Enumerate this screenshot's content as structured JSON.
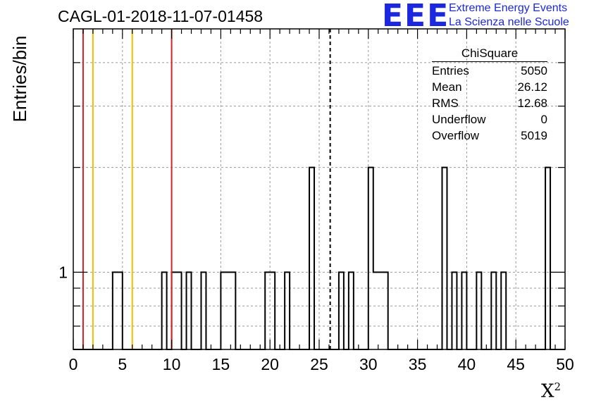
{
  "title": "CAGL-01-2018-11-07-01458",
  "logo": {
    "text": "EEE",
    "line1": "Extreme Energy Events",
    "line2": "La Scienza nelle Scuole",
    "color": "#1c28e0"
  },
  "stats": {
    "title": "ChiSquare",
    "rows": [
      {
        "label": "Entries",
        "value": "5050"
      },
      {
        "label": "Mean",
        "value": "26.12"
      },
      {
        "label": "RMS",
        "value": "12.68"
      },
      {
        "label": "Underflow",
        "value": "0"
      },
      {
        "label": "Overflow",
        "value": "5019"
      }
    ]
  },
  "chart_data": {
    "type": "bar",
    "histogram": true,
    "title": "CAGL-01-2018-11-07-01458",
    "xlabel": "X",
    "xlabel_superscript": "2",
    "ylabel": "Entries/bin",
    "xlim": [
      0,
      50
    ],
    "ylim": [
      0.6,
      5
    ],
    "yscale": "log",
    "grid": true,
    "x_ticks": [
      "0",
      "5",
      "10",
      "15",
      "20",
      "25",
      "30",
      "35",
      "40",
      "45",
      "50"
    ],
    "y_ticks": [
      "1"
    ],
    "bin_width": 0.5,
    "bins": [
      {
        "x": 4.0,
        "y": 1
      },
      {
        "x": 4.5,
        "y": 1
      },
      {
        "x": 9.0,
        "y": 1
      },
      {
        "x": 10.0,
        "y": 1
      },
      {
        "x": 10.5,
        "y": 1
      },
      {
        "x": 11.5,
        "y": 1
      },
      {
        "x": 13.0,
        "y": 1
      },
      {
        "x": 15.0,
        "y": 1
      },
      {
        "x": 15.5,
        "y": 1
      },
      {
        "x": 16.0,
        "y": 1
      },
      {
        "x": 19.5,
        "y": 1
      },
      {
        "x": 20.0,
        "y": 1
      },
      {
        "x": 21.5,
        "y": 1
      },
      {
        "x": 24.0,
        "y": 2
      },
      {
        "x": 27.0,
        "y": 1
      },
      {
        "x": 28.0,
        "y": 1
      },
      {
        "x": 30.0,
        "y": 2
      },
      {
        "x": 30.5,
        "y": 1
      },
      {
        "x": 31.0,
        "y": 1
      },
      {
        "x": 31.5,
        "y": 1
      },
      {
        "x": 37.5,
        "y": 2
      },
      {
        "x": 38.5,
        "y": 1
      },
      {
        "x": 39.5,
        "y": 1
      },
      {
        "x": 41.0,
        "y": 1
      },
      {
        "x": 42.5,
        "y": 1
      },
      {
        "x": 43.5,
        "y": 1
      },
      {
        "x": 48.0,
        "y": 2
      }
    ],
    "vertical_lines": [
      {
        "x": 1,
        "color": "#e02020",
        "style": "solid"
      },
      {
        "x": 2,
        "color": "#f0c000",
        "style": "solid"
      },
      {
        "x": 6,
        "color": "#f0c000",
        "style": "solid"
      },
      {
        "x": 10,
        "color": "#e02020",
        "style": "solid"
      },
      {
        "x": 26.12,
        "color": "#000000",
        "style": "dashed"
      }
    ]
  }
}
